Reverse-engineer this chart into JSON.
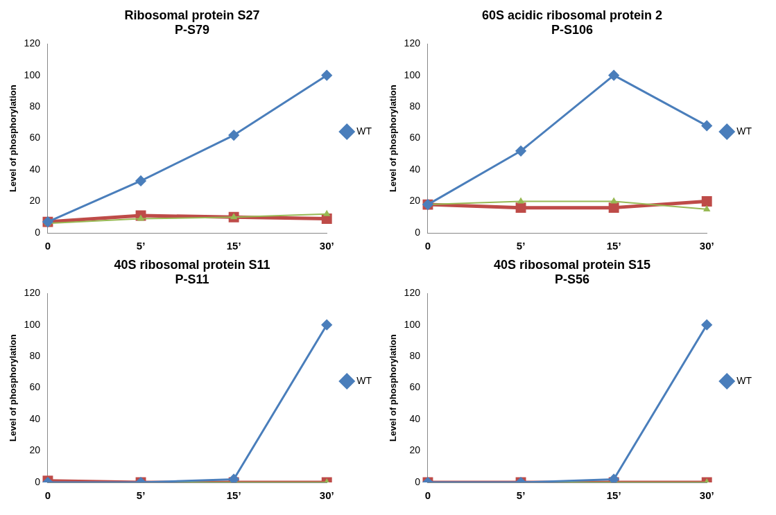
{
  "chart_data": [
    {
      "type": "line",
      "title": "Ribosomal protein S27\nP-S79",
      "ylabel": "Level of phosphorylation",
      "categories": [
        "0",
        "5’",
        "15’",
        "30’"
      ],
      "ylim": [
        0,
        120
      ],
      "yticks": [
        0,
        20,
        40,
        60,
        80,
        100,
        120
      ],
      "grid": false,
      "legend": "right",
      "series": [
        {
          "name": "WT",
          "color": "#4a7ebb",
          "marker": "diamond",
          "values": [
            7,
            33,
            62,
            100
          ]
        },
        {
          "color": "#be4b48",
          "marker": "square",
          "values": [
            7,
            11,
            10,
            9
          ]
        },
        {
          "color": "#98b954",
          "marker": "triangle",
          "values": [
            6,
            9,
            10,
            12
          ]
        }
      ]
    },
    {
      "type": "line",
      "title": "60S acidic ribosomal protein 2\nP-S106",
      "ylabel": "Level of phosphorylation",
      "categories": [
        "0",
        "5’",
        "15’",
        "30’"
      ],
      "ylim": [
        0,
        120
      ],
      "yticks": [
        0,
        20,
        40,
        60,
        80,
        100,
        120
      ],
      "grid": false,
      "legend": "right",
      "series": [
        {
          "name": "WT",
          "color": "#4a7ebb",
          "marker": "diamond",
          "values": [
            18,
            52,
            100,
            68
          ]
        },
        {
          "color": "#be4b48",
          "marker": "square",
          "values": [
            18,
            16,
            16,
            20
          ]
        },
        {
          "color": "#98b954",
          "marker": "triangle",
          "values": [
            18,
            20,
            20,
            15
          ]
        }
      ]
    },
    {
      "type": "line",
      "title": "40S ribosomal protein S11\nP-S11",
      "ylabel": "Level of phosphorylation",
      "categories": [
        "0",
        "5’",
        "15’",
        "30’"
      ],
      "ylim": [
        0,
        120
      ],
      "yticks": [
        0,
        20,
        40,
        60,
        80,
        100,
        120
      ],
      "grid": false,
      "legend": "right",
      "series": [
        {
          "name": "WT",
          "color": "#4a7ebb",
          "marker": "diamond",
          "values": [
            0,
            0,
            2,
            100
          ]
        },
        {
          "color": "#be4b48",
          "marker": "square",
          "values": [
            1,
            0,
            0,
            0
          ]
        },
        {
          "color": "#98b954",
          "marker": "triangle",
          "values": [
            0,
            0,
            0,
            0
          ]
        }
      ]
    },
    {
      "type": "line",
      "title": "40S ribosomal protein S15\nP-S56",
      "ylabel": "Level of phosphorylation",
      "categories": [
        "0",
        "5’",
        "15’",
        "30’"
      ],
      "ylim": [
        0,
        120
      ],
      "yticks": [
        0,
        20,
        40,
        60,
        80,
        100,
        120
      ],
      "grid": false,
      "legend": "right",
      "series": [
        {
          "name": "WT",
          "color": "#4a7ebb",
          "marker": "diamond",
          "values": [
            0,
            0,
            2,
            100
          ]
        },
        {
          "color": "#be4b48",
          "marker": "square",
          "values": [
            0,
            0,
            0,
            0
          ]
        },
        {
          "color": "#98b954",
          "marker": "triangle",
          "values": [
            0,
            0,
            0,
            0
          ]
        }
      ]
    }
  ]
}
